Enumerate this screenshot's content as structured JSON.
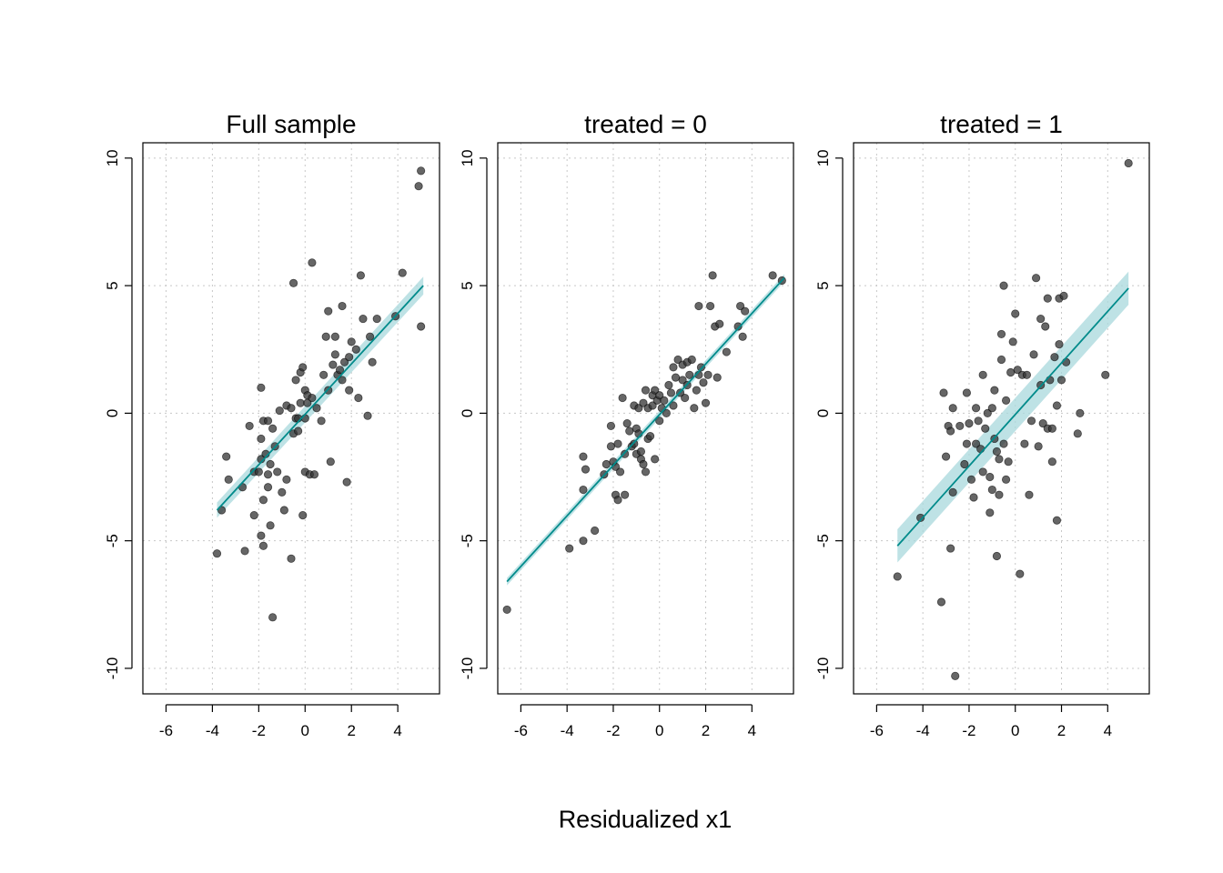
{
  "xlabel": "Residualized x1",
  "colors": {
    "point": "#333333",
    "fit_line": "#008B8B",
    "ci_band": "#A8D8DC",
    "grid": "#C8C8C8"
  },
  "chart_data": [
    {
      "type": "scatter",
      "title": "Full sample",
      "xlim": [
        -7,
        5.8
      ],
      "ylim": [
        -11,
        10.6
      ],
      "xticks": [
        -6,
        -4,
        -2,
        0,
        2,
        4
      ],
      "yticks": [
        -10,
        -5,
        0,
        5,
        10
      ],
      "grid": true,
      "fit": {
        "x": [
          -3.8,
          5.1
        ],
        "y": [
          -3.8,
          5.0
        ],
        "ci_halfwidth": [
          0.3,
          0.35
        ]
      },
      "points": [
        [
          -3.8,
          -5.5
        ],
        [
          -3.6,
          -3.8
        ],
        [
          -3.4,
          -1.7
        ],
        [
          -3.3,
          -2.6
        ],
        [
          -2.7,
          -2.9
        ],
        [
          -2.6,
          -5.4
        ],
        [
          -2.4,
          -0.5
        ],
        [
          -2.2,
          -2.3
        ],
        [
          -2.2,
          -4.0
        ],
        [
          -2.0,
          -2.3
        ],
        [
          -1.9,
          1.0
        ],
        [
          -1.9,
          -1.0
        ],
        [
          -1.9,
          -1.8
        ],
        [
          -1.9,
          -4.8
        ],
        [
          -1.8,
          -0.3
        ],
        [
          -1.8,
          -5.2
        ],
        [
          -1.8,
          -3.4
        ],
        [
          -1.7,
          -1.6
        ],
        [
          -1.6,
          -0.3
        ],
        [
          -1.6,
          -2.4
        ],
        [
          -1.6,
          -2.9
        ],
        [
          -1.5,
          -4.4
        ],
        [
          -1.5,
          -2.0
        ],
        [
          -1.4,
          -0.6
        ],
        [
          -1.4,
          -8.0
        ],
        [
          -1.3,
          -1.3
        ],
        [
          -1.2,
          -2.3
        ],
        [
          -1.1,
          0.1
        ],
        [
          -1.0,
          -3.1
        ],
        [
          -0.9,
          -3.8
        ],
        [
          -0.8,
          0.3
        ],
        [
          -0.8,
          -2.6
        ],
        [
          -0.6,
          -5.7
        ],
        [
          -0.6,
          0.2
        ],
        [
          -0.5,
          5.1
        ],
        [
          -0.5,
          -0.8
        ],
        [
          -0.4,
          -0.2
        ],
        [
          -0.4,
          1.3
        ],
        [
          -0.3,
          -0.7
        ],
        [
          -0.3,
          -0.2
        ],
        [
          -0.2,
          1.6
        ],
        [
          -0.2,
          0.4
        ],
        [
          -0.1,
          1.8
        ],
        [
          -0.1,
          -4.0
        ],
        [
          0.0,
          -0.2
        ],
        [
          0.0,
          -2.3
        ],
        [
          0.0,
          0.9
        ],
        [
          0.1,
          0.7
        ],
        [
          0.1,
          0.4
        ],
        [
          0.2,
          -2.4
        ],
        [
          0.3,
          5.9
        ],
        [
          0.3,
          0.6
        ],
        [
          0.4,
          -2.4
        ],
        [
          0.5,
          0.2
        ],
        [
          0.7,
          -0.3
        ],
        [
          0.8,
          1.5
        ],
        [
          0.9,
          3.0
        ],
        [
          1.0,
          0.9
        ],
        [
          1.0,
          4.0
        ],
        [
          1.1,
          -1.9
        ],
        [
          1.2,
          1.9
        ],
        [
          1.3,
          3.0
        ],
        [
          1.3,
          2.3
        ],
        [
          1.4,
          1.5
        ],
        [
          1.5,
          1.7
        ],
        [
          1.6,
          1.3
        ],
        [
          1.6,
          4.2
        ],
        [
          1.7,
          2.0
        ],
        [
          1.8,
          -2.7
        ],
        [
          1.9,
          2.2
        ],
        [
          1.9,
          0.9
        ],
        [
          2.0,
          2.8
        ],
        [
          2.2,
          2.5
        ],
        [
          2.3,
          0.6
        ],
        [
          2.4,
          5.4
        ],
        [
          2.5,
          3.7
        ],
        [
          2.7,
          -0.1
        ],
        [
          2.8,
          3.0
        ],
        [
          2.9,
          2.0
        ],
        [
          3.1,
          3.7
        ],
        [
          3.9,
          3.8
        ],
        [
          4.2,
          5.5
        ],
        [
          4.9,
          8.9
        ],
        [
          5.0,
          9.5
        ],
        [
          5.0,
          3.4
        ]
      ]
    },
    {
      "type": "scatter",
      "title": "treated = 0",
      "xlim": [
        -7,
        5.8
      ],
      "ylim": [
        -11,
        10.6
      ],
      "xticks": [
        -6,
        -4,
        -2,
        0,
        2,
        4
      ],
      "yticks": [
        -10,
        -5,
        0,
        5,
        10
      ],
      "grid": true,
      "fit": {
        "x": [
          -6.6,
          5.4
        ],
        "y": [
          -6.6,
          5.3
        ],
        "ci_halfwidth": [
          0.15,
          0.15
        ]
      },
      "points": [
        [
          -6.6,
          -7.7
        ],
        [
          -3.9,
          -5.3
        ],
        [
          -3.3,
          -5.0
        ],
        [
          -3.3,
          -3.0
        ],
        [
          -3.3,
          -1.7
        ],
        [
          -3.2,
          -2.2
        ],
        [
          -2.8,
          -4.6
        ],
        [
          -2.4,
          -2.4
        ],
        [
          -2.3,
          -2.0
        ],
        [
          -2.1,
          -1.3
        ],
        [
          -2.1,
          -0.5
        ],
        [
          -2.0,
          -1.9
        ],
        [
          -1.9,
          -2.1
        ],
        [
          -1.9,
          -3.2
        ],
        [
          -1.8,
          -3.4
        ],
        [
          -1.8,
          -1.2
        ],
        [
          -1.7,
          -2.3
        ],
        [
          -1.6,
          0.6
        ],
        [
          -1.5,
          -3.2
        ],
        [
          -1.5,
          -1.6
        ],
        [
          -1.4,
          -0.4
        ],
        [
          -1.3,
          -0.7
        ],
        [
          -1.2,
          -1.3
        ],
        [
          -1.1,
          0.3
        ],
        [
          -1.1,
          -1.2
        ],
        [
          -1.0,
          -0.6
        ],
        [
          -1.0,
          -1.6
        ],
        [
          -0.9,
          0.2
        ],
        [
          -0.9,
          -0.8
        ],
        [
          -0.8,
          -1.8
        ],
        [
          -0.8,
          -1.5
        ],
        [
          -0.7,
          0.4
        ],
        [
          -0.7,
          -2.0
        ],
        [
          -0.6,
          0.9
        ],
        [
          -0.6,
          -2.3
        ],
        [
          -0.5,
          -1.0
        ],
        [
          -0.5,
          0.2
        ],
        [
          -0.4,
          -0.9
        ],
        [
          -0.3,
          0.7
        ],
        [
          -0.3,
          0.3
        ],
        [
          -0.2,
          0.9
        ],
        [
          -0.2,
          -1.8
        ],
        [
          -0.1,
          0.5
        ],
        [
          0.0,
          -0.3
        ],
        [
          0.0,
          0.7
        ],
        [
          0.1,
          0.2
        ],
        [
          0.2,
          0.5
        ],
        [
          0.3,
          0.0
        ],
        [
          0.4,
          1.1
        ],
        [
          0.5,
          0.8
        ],
        [
          0.6,
          1.8
        ],
        [
          0.6,
          0.3
        ],
        [
          0.7,
          1.4
        ],
        [
          0.8,
          2.1
        ],
        [
          0.9,
          0.8
        ],
        [
          1.0,
          1.3
        ],
        [
          1.0,
          1.9
        ],
        [
          1.1,
          0.6
        ],
        [
          1.2,
          2.0
        ],
        [
          1.2,
          1.1
        ],
        [
          1.3,
          1.5
        ],
        [
          1.4,
          2.1
        ],
        [
          1.5,
          0.2
        ],
        [
          1.6,
          0.9
        ],
        [
          1.7,
          1.5
        ],
        [
          1.7,
          4.2
        ],
        [
          1.8,
          1.8
        ],
        [
          1.9,
          1.2
        ],
        [
          2.0,
          0.4
        ],
        [
          2.1,
          1.5
        ],
        [
          2.2,
          4.2
        ],
        [
          2.3,
          5.4
        ],
        [
          2.4,
          3.4
        ],
        [
          2.5,
          1.4
        ],
        [
          2.6,
          3.5
        ],
        [
          2.9,
          2.4
        ],
        [
          3.4,
          3.4
        ],
        [
          3.5,
          4.2
        ],
        [
          3.6,
          3.0
        ],
        [
          3.7,
          4.0
        ],
        [
          4.9,
          5.4
        ],
        [
          5.3,
          5.2
        ]
      ]
    },
    {
      "type": "scatter",
      "title": "treated = 1",
      "xlim": [
        -7,
        5.8
      ],
      "ylim": [
        -11,
        10.6
      ],
      "xticks": [
        -6,
        -4,
        -2,
        0,
        2,
        4
      ],
      "yticks": [
        -10,
        -5,
        0,
        5,
        10
      ],
      "grid": true,
      "fit": {
        "x": [
          -5.1,
          4.9
        ],
        "y": [
          -5.2,
          4.9
        ],
        "ci_halfwidth": [
          0.65,
          0.65
        ]
      },
      "points": [
        [
          -5.1,
          -6.4
        ],
        [
          -4.1,
          -4.1
        ],
        [
          -3.2,
          -7.4
        ],
        [
          -3.1,
          0.8
        ],
        [
          -3.0,
          -1.7
        ],
        [
          -2.9,
          -0.5
        ],
        [
          -2.8,
          -0.7
        ],
        [
          -2.8,
          -5.3
        ],
        [
          -2.7,
          -3.1
        ],
        [
          -2.7,
          0.2
        ],
        [
          -2.6,
          -10.3
        ],
        [
          -2.4,
          -0.5
        ],
        [
          -2.2,
          -2.0
        ],
        [
          -2.1,
          -1.2
        ],
        [
          -2.1,
          0.8
        ],
        [
          -2.0,
          -0.4
        ],
        [
          -1.9,
          -2.6
        ],
        [
          -1.8,
          -3.3
        ],
        [
          -1.7,
          -1.2
        ],
        [
          -1.7,
          0.2
        ],
        [
          -1.6,
          -0.3
        ],
        [
          -1.5,
          -1.4
        ],
        [
          -1.4,
          -2.3
        ],
        [
          -1.4,
          1.5
        ],
        [
          -1.3,
          -0.6
        ],
        [
          -1.2,
          0.0
        ],
        [
          -1.1,
          -2.5
        ],
        [
          -1.1,
          -3.9
        ],
        [
          -1.0,
          0.2
        ],
        [
          -1.0,
          -3.0
        ],
        [
          -0.9,
          -1.0
        ],
        [
          -0.9,
          0.9
        ],
        [
          -0.8,
          -1.5
        ],
        [
          -0.8,
          -5.6
        ],
        [
          -0.7,
          -1.8
        ],
        [
          -0.7,
          -3.2
        ],
        [
          -0.6,
          2.1
        ],
        [
          -0.6,
          3.1
        ],
        [
          -0.5,
          -1.2
        ],
        [
          -0.5,
          5.0
        ],
        [
          -0.4,
          -2.6
        ],
        [
          -0.4,
          0.5
        ],
        [
          -0.3,
          -1.9
        ],
        [
          -0.2,
          1.6
        ],
        [
          -0.1,
          2.8
        ],
        [
          0.0,
          3.9
        ],
        [
          0.1,
          1.7
        ],
        [
          0.2,
          -6.3
        ],
        [
          0.3,
          1.5
        ],
        [
          0.4,
          -1.2
        ],
        [
          0.5,
          1.5
        ],
        [
          0.6,
          -3.2
        ],
        [
          0.7,
          -0.3
        ],
        [
          0.8,
          2.3
        ],
        [
          0.9,
          5.3
        ],
        [
          1.0,
          -1.3
        ],
        [
          1.1,
          3.7
        ],
        [
          1.1,
          1.1
        ],
        [
          1.2,
          -0.4
        ],
        [
          1.3,
          3.4
        ],
        [
          1.4,
          -0.6
        ],
        [
          1.4,
          4.5
        ],
        [
          1.5,
          1.3
        ],
        [
          1.6,
          -1.9
        ],
        [
          1.6,
          -0.6
        ],
        [
          1.7,
          2.2
        ],
        [
          1.8,
          -4.2
        ],
        [
          1.8,
          0.3
        ],
        [
          1.9,
          2.7
        ],
        [
          1.9,
          4.5
        ],
        [
          2.0,
          1.3
        ],
        [
          2.1,
          4.6
        ],
        [
          2.2,
          2.0
        ],
        [
          2.7,
          -0.8
        ],
        [
          2.8,
          0.0
        ],
        [
          3.9,
          1.5
        ],
        [
          4.9,
          9.8
        ]
      ]
    }
  ]
}
